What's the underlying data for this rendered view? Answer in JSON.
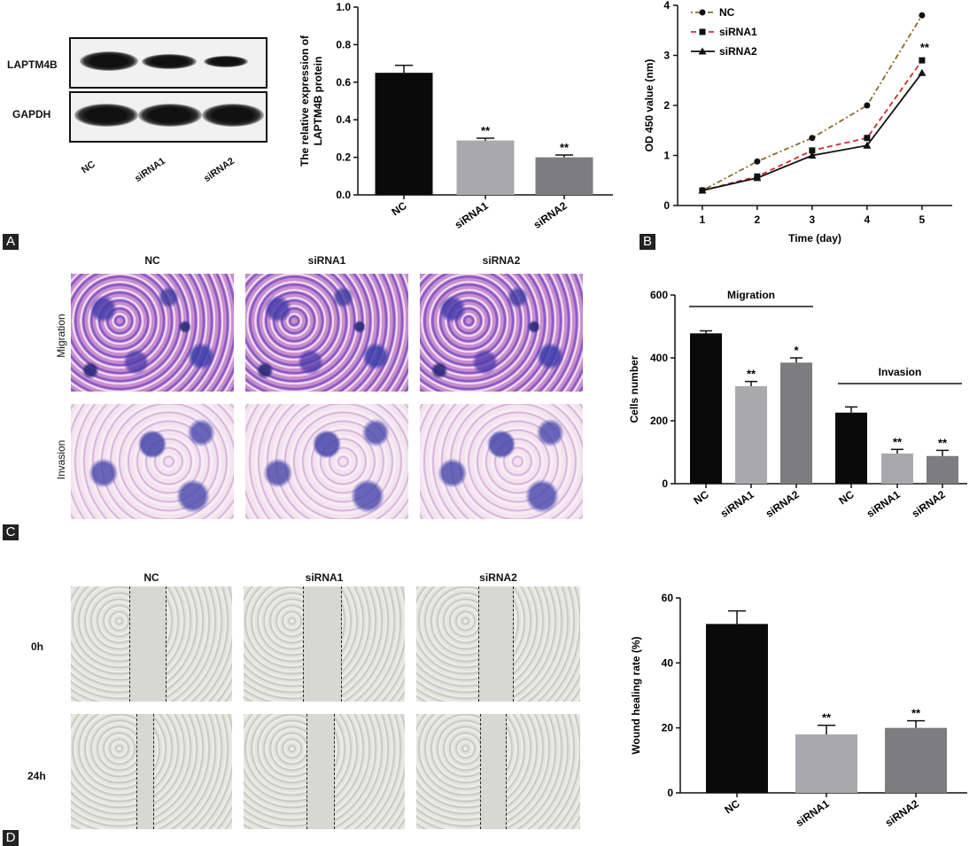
{
  "panel_letters": {
    "a": "A",
    "b": "B",
    "c": "C",
    "d": "D"
  },
  "western_blot": {
    "bands": [
      "LAPTM4B",
      "GAPDH"
    ],
    "lanes": [
      "NC",
      "siRNA1",
      "siRNA2"
    ]
  },
  "images_c": {
    "columns": [
      "NC",
      "siRNA1",
      "siRNA2"
    ],
    "rows": [
      "Migration",
      "Invasion"
    ]
  },
  "images_d": {
    "columns": [
      "NC",
      "siRNA1",
      "siRNA2"
    ],
    "rows": [
      "0h",
      "24h"
    ]
  },
  "chart_data": [
    {
      "id": "protein",
      "type": "bar",
      "categories": [
        "NC",
        "siRNA1",
        "siRNA2"
      ],
      "values": [
        0.65,
        0.29,
        0.2
      ],
      "errors": [
        0.04,
        0.012,
        0.012
      ],
      "significance": [
        "",
        "**",
        "**"
      ],
      "ylabel_lines": [
        "The relative expression of",
        "LAPTM4B protein"
      ],
      "ylim": [
        0,
        1.0
      ],
      "yticks": [
        "0.0",
        "0.2",
        "0.4",
        "0.6",
        "0.8",
        "1.0"
      ],
      "colors": [
        "#0a0a0a",
        "#a9a9ad",
        "#7d7d80"
      ]
    },
    {
      "id": "od450",
      "type": "line",
      "x": [
        1,
        2,
        3,
        4,
        5
      ],
      "xticks": [
        "1",
        "2",
        "3",
        "4",
        "5"
      ],
      "xlabel": "Time (day)",
      "ylabel": "OD 450 value (nm)",
      "ylim": [
        0,
        4
      ],
      "yticks": [
        "0",
        "1",
        "2",
        "3",
        "4"
      ],
      "annotation": "**",
      "series": [
        {
          "name": "NC",
          "values": [
            0.3,
            0.88,
            1.35,
            2.0,
            3.8
          ],
          "color": "#8a6a2c",
          "dash": "2,3,6,3",
          "marker": "circle"
        },
        {
          "name": "siRNA1",
          "values": [
            0.3,
            0.58,
            1.1,
            1.35,
            2.9
          ],
          "color": "#d42a2a",
          "dash": "6,4",
          "marker": "square"
        },
        {
          "name": "siRNA2",
          "values": [
            0.3,
            0.55,
            1.0,
            1.2,
            2.65
          ],
          "color": "#111111",
          "dash": "",
          "marker": "triangle"
        }
      ]
    },
    {
      "id": "cells",
      "type": "bar",
      "categories": [
        "NC",
        "siRNA1",
        "siRNA2",
        "NC",
        "siRNA1",
        "siRNA2"
      ],
      "values": [
        478,
        310,
        385,
        226,
        96,
        88
      ],
      "errors": [
        8,
        15,
        15,
        18,
        13,
        18
      ],
      "significance": [
        "",
        "**",
        "*",
        "",
        "**",
        "**"
      ],
      "groups": [
        {
          "label": "Migration",
          "from": 0,
          "to": 2
        },
        {
          "label": "Invasion",
          "from": 3,
          "to": 5
        }
      ],
      "ylabel": "Cells number",
      "ylim": [
        0,
        600
      ],
      "yticks": [
        "0",
        "200",
        "400",
        "600"
      ],
      "colors": [
        "#0a0a0a",
        "#a9a9ad",
        "#7d7d80",
        "#0a0a0a",
        "#a9a9ad",
        "#7d7d80"
      ]
    },
    {
      "id": "wound",
      "type": "bar",
      "categories": [
        "NC",
        "siRNA1",
        "siRNA2"
      ],
      "values": [
        52,
        18,
        20
      ],
      "errors": [
        4,
        2.8,
        2.2
      ],
      "significance": [
        "",
        "**",
        "**"
      ],
      "ylabel": "Wound healing rate (%)",
      "ylim": [
        0,
        60
      ],
      "yticks": [
        "0",
        "20",
        "40",
        "60"
      ],
      "colors": [
        "#0a0a0a",
        "#a9a9ad",
        "#7d7d80"
      ]
    }
  ]
}
